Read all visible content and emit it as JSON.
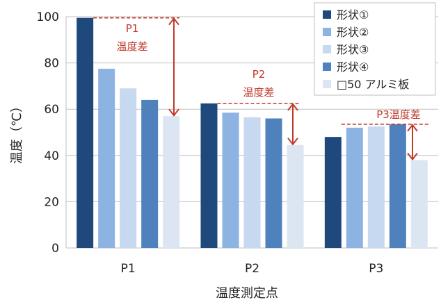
{
  "chart_data": {
    "type": "bar",
    "title": "",
    "xlabel": "温度測定点",
    "ylabel": "温度（℃）",
    "ylim": [
      0,
      100
    ],
    "yticks": [
      0,
      20,
      40,
      60,
      80,
      100
    ],
    "grid": true,
    "legend_position": "top-right",
    "categories": [
      "P1",
      "P2",
      "P3"
    ],
    "series": [
      {
        "name": "形状①",
        "color": "#1f497d",
        "values": [
          99.5,
          62.5,
          48
        ]
      },
      {
        "name": "形状②",
        "color": "#8db3e2",
        "values": [
          77.5,
          58.5,
          52
        ]
      },
      {
        "name": "形状③",
        "color": "#c6d9f1",
        "values": [
          69,
          56.5,
          52.5
        ]
      },
      {
        "name": "形状④",
        "color": "#4f81bd",
        "values": [
          64,
          56,
          53.5
        ]
      },
      {
        "name": "□50 アルミ板",
        "color": "#dce6f2",
        "values": [
          57,
          44.5,
          38
        ]
      }
    ],
    "annotations": [
      {
        "category": "P1",
        "lines": [
          "P1",
          "温度差"
        ],
        "color": "#c0392b"
      },
      {
        "category": "P2",
        "lines": [
          "P2",
          "温度差"
        ],
        "color": "#c0392b"
      },
      {
        "category": "P3",
        "lines": [
          "P3温度差"
        ],
        "color": "#c0392b"
      }
    ]
  }
}
